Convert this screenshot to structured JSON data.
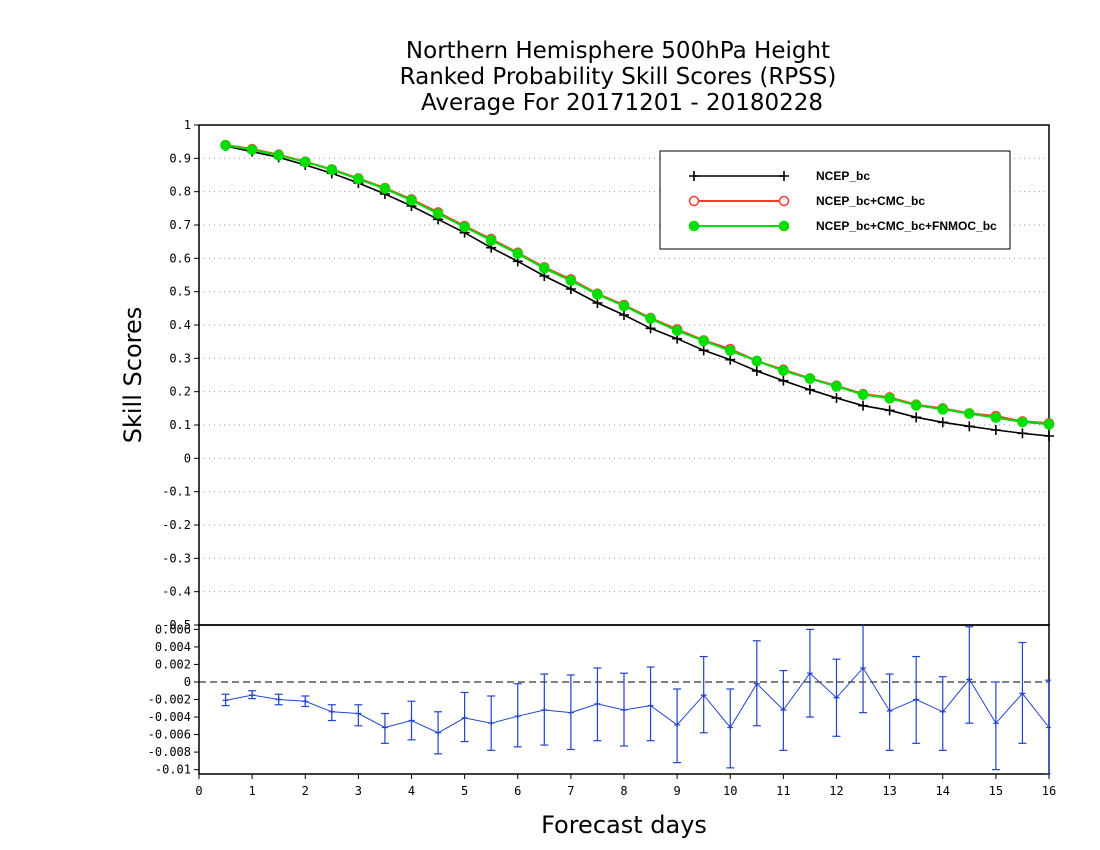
{
  "title_lines": [
    "Northern Hemisphere 500hPa Height",
    "Ranked Probability Skill Scores (RPSS)",
    "Average For 20171201 - 20180228"
  ],
  "chart_data": [
    {
      "type": "line",
      "ylabel": "Skill Scores",
      "ylim": [
        -0.5,
        1
      ],
      "yticks": [
        "1",
        "0.9",
        "0.8",
        "0.7",
        "0.6",
        "0.5",
        "0.4",
        "0.3",
        "0.2",
        "0.1",
        "0",
        "-0.1",
        "-0.2",
        "-0.3",
        "-0.4",
        "-0.5"
      ],
      "grid": true,
      "legend_placement": "top-right",
      "x": [
        0.5,
        1,
        1.5,
        2,
        2.5,
        3,
        3.5,
        4,
        4.5,
        5,
        5.5,
        6,
        6.5,
        7,
        7.5,
        8,
        8.5,
        9,
        9.5,
        10,
        10.5,
        11,
        11.5,
        12,
        12.5,
        13,
        13.5,
        14,
        14.5,
        15,
        15.5,
        16
      ],
      "series": [
        {
          "name": "NCEP_bc",
          "color": "#000000",
          "marker": "plus",
          "values": [
            0.937,
            0.92,
            0.903,
            0.88,
            0.855,
            0.826,
            0.793,
            0.757,
            0.717,
            0.677,
            0.632,
            0.591,
            0.547,
            0.508,
            0.466,
            0.43,
            0.39,
            0.359,
            0.324,
            0.296,
            0.262,
            0.233,
            0.206,
            0.181,
            0.158,
            0.144,
            0.123,
            0.108,
            0.096,
            0.085,
            0.075,
            0.067
          ]
        },
        {
          "name": "NCEP_bc+CMC_bc",
          "color": "#ff3b30",
          "marker": "open-circle",
          "values": [
            0.94,
            0.928,
            0.911,
            0.89,
            0.867,
            0.84,
            0.811,
            0.777,
            0.738,
            0.697,
            0.658,
            0.617,
            0.573,
            0.537,
            0.494,
            0.46,
            0.421,
            0.387,
            0.354,
            0.328,
            0.292,
            0.266,
            0.24,
            0.218,
            0.193,
            0.183,
            0.161,
            0.15,
            0.135,
            0.127,
            0.111,
            0.105
          ]
        },
        {
          "name": "NCEP_bc+CMC_bc+FNMOC_bc",
          "color": "#00dd00",
          "marker": "filled-circle",
          "values": [
            0.939,
            0.926,
            0.909,
            0.889,
            0.866,
            0.838,
            0.809,
            0.774,
            0.734,
            0.694,
            0.654,
            0.614,
            0.57,
            0.533,
            0.492,
            0.457,
            0.419,
            0.383,
            0.352,
            0.323,
            0.292,
            0.263,
            0.239,
            0.216,
            0.191,
            0.18,
            0.159,
            0.147,
            0.134,
            0.122,
            0.109,
            0.102
          ]
        }
      ]
    },
    {
      "type": "errorbar",
      "xlabel": "Forecast days",
      "xlim": [
        0,
        16
      ],
      "xticks": [
        "0",
        "1",
        "2",
        "3",
        "4",
        "5",
        "6",
        "7",
        "8",
        "9",
        "10",
        "11",
        "12",
        "13",
        "14",
        "15",
        "16"
      ],
      "ylim": [
        -0.0105,
        0.0065
      ],
      "yticks": [
        "0.006",
        "0.004",
        "0.002",
        "0",
        "-0.002",
        "-0.004",
        "-0.006",
        "-0.008",
        "-0.01"
      ],
      "zero_line": "dashed",
      "color": "#2244cc",
      "x": [
        0.5,
        1,
        1.5,
        2,
        2.5,
        3,
        3.5,
        4,
        4.5,
        5,
        5.5,
        6,
        6.5,
        7,
        7.5,
        8,
        8.5,
        9,
        9.5,
        10,
        10.5,
        11,
        11.5,
        12,
        12.5,
        13,
        13.5,
        14,
        14.5,
        15,
        15.5,
        16
      ],
      "values": [
        -0.0021,
        -0.0015,
        -0.002,
        -0.0022,
        -0.0034,
        -0.0036,
        -0.0052,
        -0.0044,
        -0.0058,
        -0.0041,
        -0.0047,
        -0.0039,
        -0.0032,
        -0.0035,
        -0.0025,
        -0.0032,
        -0.0027,
        -0.0049,
        -0.0015,
        -0.0052,
        -0.0002,
        -0.0032,
        0.001,
        -0.0018,
        0.0016,
        -0.0033,
        -0.002,
        -0.0034,
        0.0003,
        -0.0047,
        -0.0013,
        -0.0052
      ],
      "lower": [
        -0.0027,
        -0.0019,
        -0.0026,
        -0.0028,
        -0.0044,
        -0.005,
        -0.007,
        -0.0066,
        -0.0082,
        -0.0068,
        -0.0078,
        -0.0074,
        -0.0072,
        -0.0077,
        -0.0067,
        -0.0073,
        -0.0067,
        -0.0092,
        -0.0058,
        -0.0098,
        -0.005,
        -0.0078,
        -0.004,
        -0.0062,
        -0.0035,
        -0.0078,
        -0.007,
        -0.0078,
        -0.0047,
        -0.01,
        -0.007,
        -0.0105
      ],
      "upper": [
        -0.0014,
        -0.001,
        -0.0014,
        -0.0016,
        -0.0026,
        -0.0026,
        -0.0036,
        -0.0022,
        -0.0034,
        -0.0012,
        -0.0016,
        -0.0002,
        0.0009,
        0.0008,
        0.0016,
        0.001,
        0.0017,
        -0.0008,
        0.0029,
        -0.0008,
        0.0047,
        0.0013,
        0.006,
        0.0026,
        0.007,
        0.0009,
        0.0029,
        0.0006,
        0.0063,
        0.0,
        0.0045,
        0.0002
      ]
    }
  ]
}
